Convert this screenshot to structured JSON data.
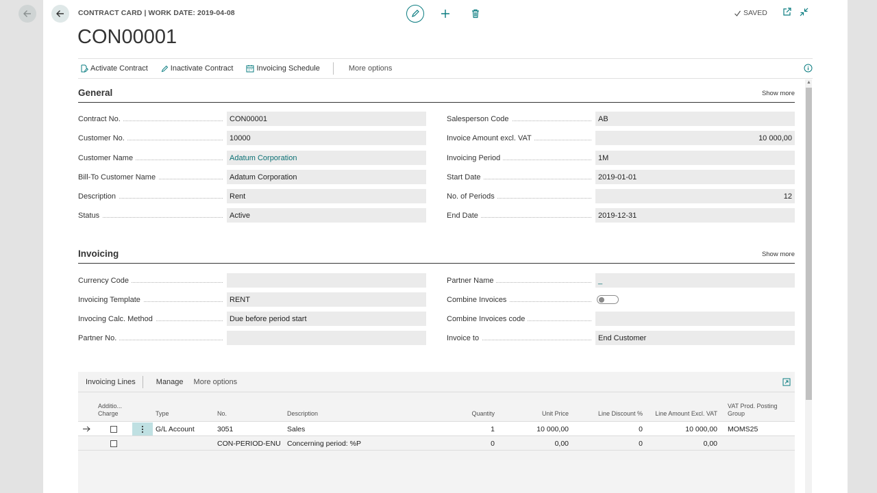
{
  "header": {
    "breadcrumb": "CONTRACT CARD | WORK DATE: 2019-04-08",
    "title": "CON00001",
    "saved_label": "SAVED"
  },
  "actions": {
    "activate": "Activate Contract",
    "inactivate": "Inactivate Contract",
    "schedule": "Invoicing Schedule",
    "more": "More options"
  },
  "general": {
    "title": "General",
    "show_more": "Show more",
    "left": [
      {
        "label": "Contract No.",
        "value": "CON00001"
      },
      {
        "label": "Customer No.",
        "value": "10000"
      },
      {
        "label": "Customer Name",
        "value": "Adatum Corporation"
      },
      {
        "label": "Bill-To Customer Name",
        "value": "Adatum Corporation"
      },
      {
        "label": "Description",
        "value": "Rent"
      },
      {
        "label": "Status",
        "value": "Active"
      }
    ],
    "right": [
      {
        "label": "Salesperson Code",
        "value": "AB"
      },
      {
        "label": "Invoice Amount excl. VAT",
        "value": "10 000,00"
      },
      {
        "label": "Invoicing Period",
        "value": "1M"
      },
      {
        "label": "Start Date",
        "value": "2019-01-01"
      },
      {
        "label": "No. of Periods",
        "value": "12"
      },
      {
        "label": "End Date",
        "value": "2019-12-31"
      }
    ]
  },
  "invoicing": {
    "title": "Invoicing",
    "show_more": "Show more",
    "left": [
      {
        "label": "Currency Code",
        "value": ""
      },
      {
        "label": "Invoicing Template",
        "value": "RENT"
      },
      {
        "label": "Invocing Calc. Method",
        "value": "Due before period start"
      },
      {
        "label": "Partner No.",
        "value": ""
      }
    ],
    "right": [
      {
        "label": "Partner Name",
        "value": "_"
      },
      {
        "label": "Combine Invoices",
        "value": ""
      },
      {
        "label": "Combine Invoices code",
        "value": ""
      },
      {
        "label": "Invoice to",
        "value": "End Customer"
      }
    ]
  },
  "lines": {
    "tab": "Invoicing Lines",
    "manage": "Manage",
    "more": "More options",
    "columns": {
      "addl1": "Additio...",
      "addl2": "Charge",
      "type": "Type",
      "no": "No.",
      "desc": "Description",
      "qty": "Quantity",
      "price": "Unit Price",
      "disc": "Line Discount %",
      "amount": "Line Amount Excl. VAT",
      "vat1": "VAT Prod. Posting",
      "vat2": "Group"
    },
    "rows": [
      {
        "type": "G/L Account",
        "no": "3051",
        "desc": "Sales",
        "qty": "1",
        "price": "10 000,00",
        "disc": "0",
        "amount": "10 000,00",
        "vat": "MOMS25"
      },
      {
        "type": "",
        "no": "CON-PERIOD-ENU",
        "desc": "Concerning period: %P",
        "qty": "0",
        "price": "0,00",
        "disc": "0",
        "amount": "0,00",
        "vat": ""
      }
    ]
  },
  "colors": {
    "accent": "#0a7c80",
    "field_bg": "#ebebeb"
  }
}
